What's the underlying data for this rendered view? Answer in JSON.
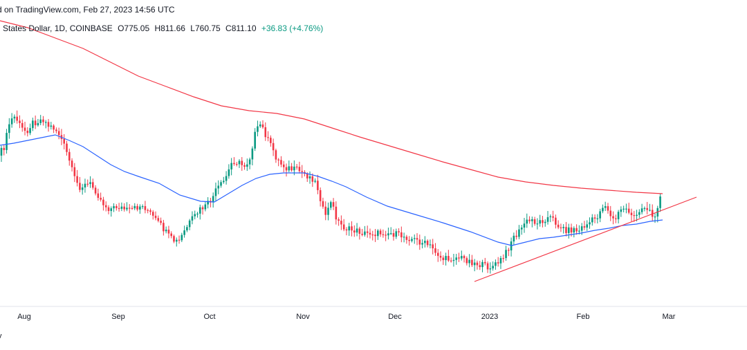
{
  "header": {
    "caption": "d on TradingView.com, Feb 27, 2023 14:56 UTC"
  },
  "legend": {
    "symbol": "States Dollar, 1D, COINBASE",
    "open": "O775.05",
    "high": "H811.66",
    "low": "L760.75",
    "close": "C811.10",
    "change": "+36.83 (+4.76%)"
  },
  "footer": {
    "text": "v"
  },
  "colors": {
    "up": "#089981",
    "down": "#f23645",
    "ma_slow": "#f23645",
    "ma_fast": "#2962ff",
    "trendline": "#f23645",
    "axis_line": "#e0e3eb"
  },
  "chart_data": {
    "type": "candlestick",
    "interval": "1D",
    "exchange": "COINBASE",
    "x_tick_labels": [
      "Aug",
      "Sep",
      "Oct",
      "Nov",
      "Dec",
      "2023",
      "Feb",
      "Mar"
    ],
    "last_candle": {
      "open": 775.05,
      "high": 811.66,
      "low": 760.75,
      "close": 811.1,
      "change": 36.83,
      "change_pct": 4.76
    },
    "series": [
      {
        "role": "moving-average-slow",
        "color": "#f23645"
      },
      {
        "role": "moving-average-fast",
        "color": "#2962ff"
      },
      {
        "role": "trendline",
        "color": "#f23645"
      }
    ],
    "grid": false
  }
}
